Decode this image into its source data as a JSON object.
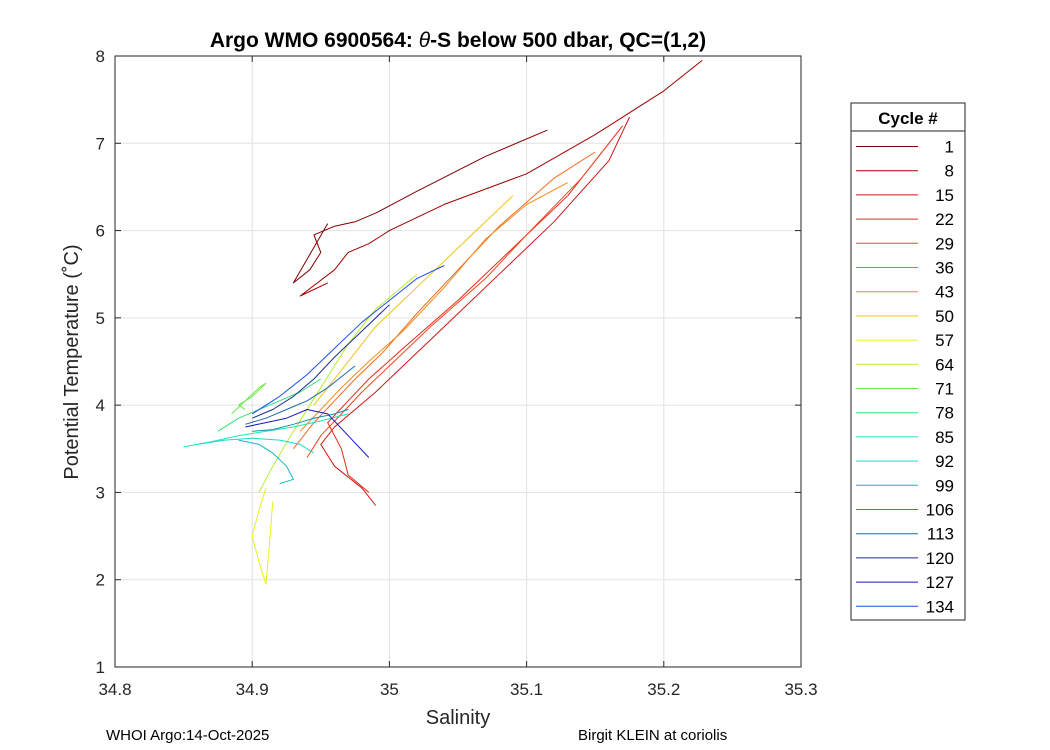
{
  "chart_data": {
    "type": "line",
    "title_prefix": "Argo WMO 6900564: ",
    "title_theta": "θ",
    "title_suffix": "-S below 500 dbar,  QC=(1,2)",
    "xlabel": "Salinity",
    "ylabel": "Potential Temperature (˚C)",
    "xlim": [
      34.8,
      35.3
    ],
    "ylim": [
      1,
      8
    ],
    "x_ticks": [
      34.8,
      34.9,
      35.0,
      35.1,
      35.2,
      35.3
    ],
    "x_tick_labels": [
      "34.8",
      "34.9",
      "35",
      "35.1",
      "35.2",
      "35.3"
    ],
    "y_ticks": [
      1,
      2,
      3,
      4,
      5,
      6,
      7,
      8
    ],
    "y_tick_labels": [
      "1",
      "2",
      "3",
      "4",
      "5",
      "6",
      "7",
      "8"
    ],
    "grid": true,
    "legend_title": "Cycle #",
    "legend_position": "right-outside",
    "legend": [
      {
        "label": "1",
        "color": "#800000"
      },
      {
        "label": "8",
        "color": "#a00000"
      },
      {
        "label": "15",
        "color": "#d21414"
      },
      {
        "label": "22",
        "color": "#e8271a"
      },
      {
        "label": "29",
        "color": "#f0491c"
      },
      {
        "label": "36",
        "color": "#f26a1e"
      },
      {
        "label": "43",
        "color": "#f08c1a"
      },
      {
        "label": "50",
        "color": "#f0c418"
      },
      {
        "label": "57",
        "color": "#e9f01a"
      },
      {
        "label": "64",
        "color": "#b8ee2e"
      },
      {
        "label": "71",
        "color": "#6ee84c"
      },
      {
        "label": "78",
        "color": "#34e07a"
      },
      {
        "label": "85",
        "color": "#22e4b0"
      },
      {
        "label": "92",
        "color": "#1fd8d2"
      },
      {
        "label": "99",
        "color": "#14b4c8"
      },
      {
        "label": "106",
        "color": "#1490b4"
      },
      {
        "label": "113",
        "color": "#1e6aa8"
      },
      {
        "label": "120",
        "color": "#1a2f8c"
      },
      {
        "label": "127",
        "color": "#1818c0"
      },
      {
        "label": "134",
        "color": "#1f4ff0"
      }
    ],
    "series": [
      {
        "name": "1",
        "x": [
          34.955,
          34.93,
          34.942,
          34.95,
          34.945,
          34.96,
          34.975,
          34.99,
          35.02,
          35.07,
          35.115
        ],
        "y": [
          6.08,
          5.4,
          5.55,
          5.75,
          5.95,
          6.05,
          6.1,
          6.2,
          6.45,
          6.85,
          7.15
        ]
      },
      {
        "name": "8",
        "x": [
          34.955,
          34.935,
          34.96,
          34.97,
          34.985,
          35.0,
          35.04,
          35.1,
          35.15,
          35.2,
          35.228
        ],
        "y": [
          5.4,
          5.25,
          5.55,
          5.75,
          5.85,
          6.0,
          6.3,
          6.65,
          7.1,
          7.6,
          7.95
        ]
      },
      {
        "name": "15",
        "x": [
          34.99,
          34.98,
          34.96,
          34.95,
          34.96,
          34.975,
          34.99,
          35.01,
          35.04,
          35.08,
          35.12,
          35.16,
          35.175
        ],
        "y": [
          2.85,
          3.05,
          3.3,
          3.55,
          3.75,
          3.95,
          4.15,
          4.45,
          4.9,
          5.5,
          6.1,
          6.8,
          7.3
        ]
      },
      {
        "name": "22",
        "x": [
          34.985,
          34.97,
          34.965,
          34.955,
          34.97,
          34.985,
          35.01,
          35.05,
          35.09,
          35.13,
          35.17
        ],
        "y": [
          3.0,
          3.2,
          3.5,
          3.8,
          4.05,
          4.3,
          4.65,
          5.2,
          5.8,
          6.4,
          7.2
        ]
      },
      {
        "name": "29",
        "x": [
          34.94,
          34.95,
          34.965,
          34.98,
          35.0,
          35.03,
          35.07,
          35.1,
          35.14,
          35.16
        ],
        "y": [
          3.4,
          3.65,
          3.9,
          4.15,
          4.45,
          4.9,
          5.45,
          5.95,
          6.6,
          7.0
        ]
      },
      {
        "name": "36",
        "x": [
          34.93,
          34.945,
          34.96,
          34.975,
          34.995,
          35.02,
          35.05,
          35.08,
          35.12,
          35.15
        ],
        "y": [
          3.5,
          3.8,
          4.05,
          4.3,
          4.6,
          5.05,
          5.55,
          6.05,
          6.6,
          6.9
        ]
      },
      {
        "name": "43",
        "x": [
          34.935,
          34.95,
          34.965,
          34.985,
          35.01,
          35.04,
          35.07,
          35.1,
          35.13
        ],
        "y": [
          3.7,
          3.95,
          4.2,
          4.5,
          4.85,
          5.35,
          5.9,
          6.3,
          6.55
        ]
      },
      {
        "name": "50",
        "x": [
          34.945,
          34.96,
          34.975,
          34.99,
          35.01,
          35.03,
          35.06,
          35.09
        ],
        "y": [
          4.0,
          4.3,
          4.6,
          4.9,
          5.2,
          5.5,
          5.95,
          6.4
        ]
      },
      {
        "name": "57",
        "x": [
          34.91,
          34.905,
          34.9,
          34.905,
          34.91,
          34.912,
          34.915
        ],
        "y": [
          3.05,
          2.8,
          2.5,
          2.2,
          1.95,
          2.3,
          2.9
        ]
      },
      {
        "name": "64",
        "x": [
          34.905,
          34.915,
          34.93,
          34.95,
          34.97,
          34.99,
          35.02
        ],
        "y": [
          3.0,
          3.3,
          3.7,
          4.2,
          4.7,
          5.1,
          5.5
        ]
      },
      {
        "name": "71",
        "x": [
          34.885,
          34.895,
          34.905,
          34.91,
          34.9,
          34.89,
          34.895
        ],
        "y": [
          3.9,
          4.05,
          4.2,
          4.25,
          4.1,
          4.0,
          3.95
        ]
      },
      {
        "name": "78",
        "x": [
          34.875,
          34.89,
          34.905,
          34.92,
          34.935,
          34.95
        ],
        "y": [
          3.7,
          3.85,
          3.95,
          4.05,
          4.15,
          4.3
        ]
      },
      {
        "name": "85",
        "x": [
          34.85,
          34.87,
          34.89,
          34.91,
          34.93,
          34.95,
          34.97
        ],
        "y": [
          3.52,
          3.58,
          3.65,
          3.7,
          3.75,
          3.82,
          3.9
        ]
      },
      {
        "name": "92",
        "x": [
          34.86,
          34.88,
          34.9,
          34.92,
          34.935,
          34.945
        ],
        "y": [
          3.55,
          3.6,
          3.62,
          3.6,
          3.55,
          3.45
        ]
      },
      {
        "name": "99",
        "x": [
          34.89,
          34.905,
          34.915,
          34.925,
          34.93,
          34.92
        ],
        "y": [
          3.6,
          3.55,
          3.45,
          3.3,
          3.15,
          3.1
        ]
      },
      {
        "name": "106",
        "x": [
          34.9,
          34.915,
          34.93,
          34.945,
          34.96,
          34.97
        ],
        "y": [
          3.7,
          3.72,
          3.78,
          3.85,
          3.9,
          3.95
        ]
      },
      {
        "name": "113",
        "x": [
          34.895,
          34.91,
          34.925,
          34.94,
          34.955,
          34.975
        ],
        "y": [
          3.78,
          3.85,
          3.95,
          4.05,
          4.2,
          4.45
        ]
      },
      {
        "name": "120",
        "x": [
          34.9,
          34.915,
          34.93,
          34.945,
          34.96,
          34.98,
          35.0
        ],
        "y": [
          3.85,
          3.95,
          4.1,
          4.3,
          4.55,
          4.85,
          5.15
        ]
      },
      {
        "name": "127",
        "x": [
          34.895,
          34.91,
          34.925,
          34.94,
          34.955,
          34.97,
          34.985
        ],
        "y": [
          3.75,
          3.8,
          3.85,
          3.95,
          3.9,
          3.65,
          3.4
        ]
      },
      {
        "name": "134",
        "x": [
          34.9,
          34.92,
          34.94,
          34.96,
          34.98,
          35.0,
          35.02,
          35.04
        ],
        "y": [
          3.9,
          4.1,
          4.35,
          4.65,
          4.95,
          5.2,
          5.45,
          5.6
        ]
      }
    ]
  },
  "footer": {
    "left": "WHOI Argo:14-Oct-2025",
    "right": "Birgit KLEIN at coriolis"
  }
}
